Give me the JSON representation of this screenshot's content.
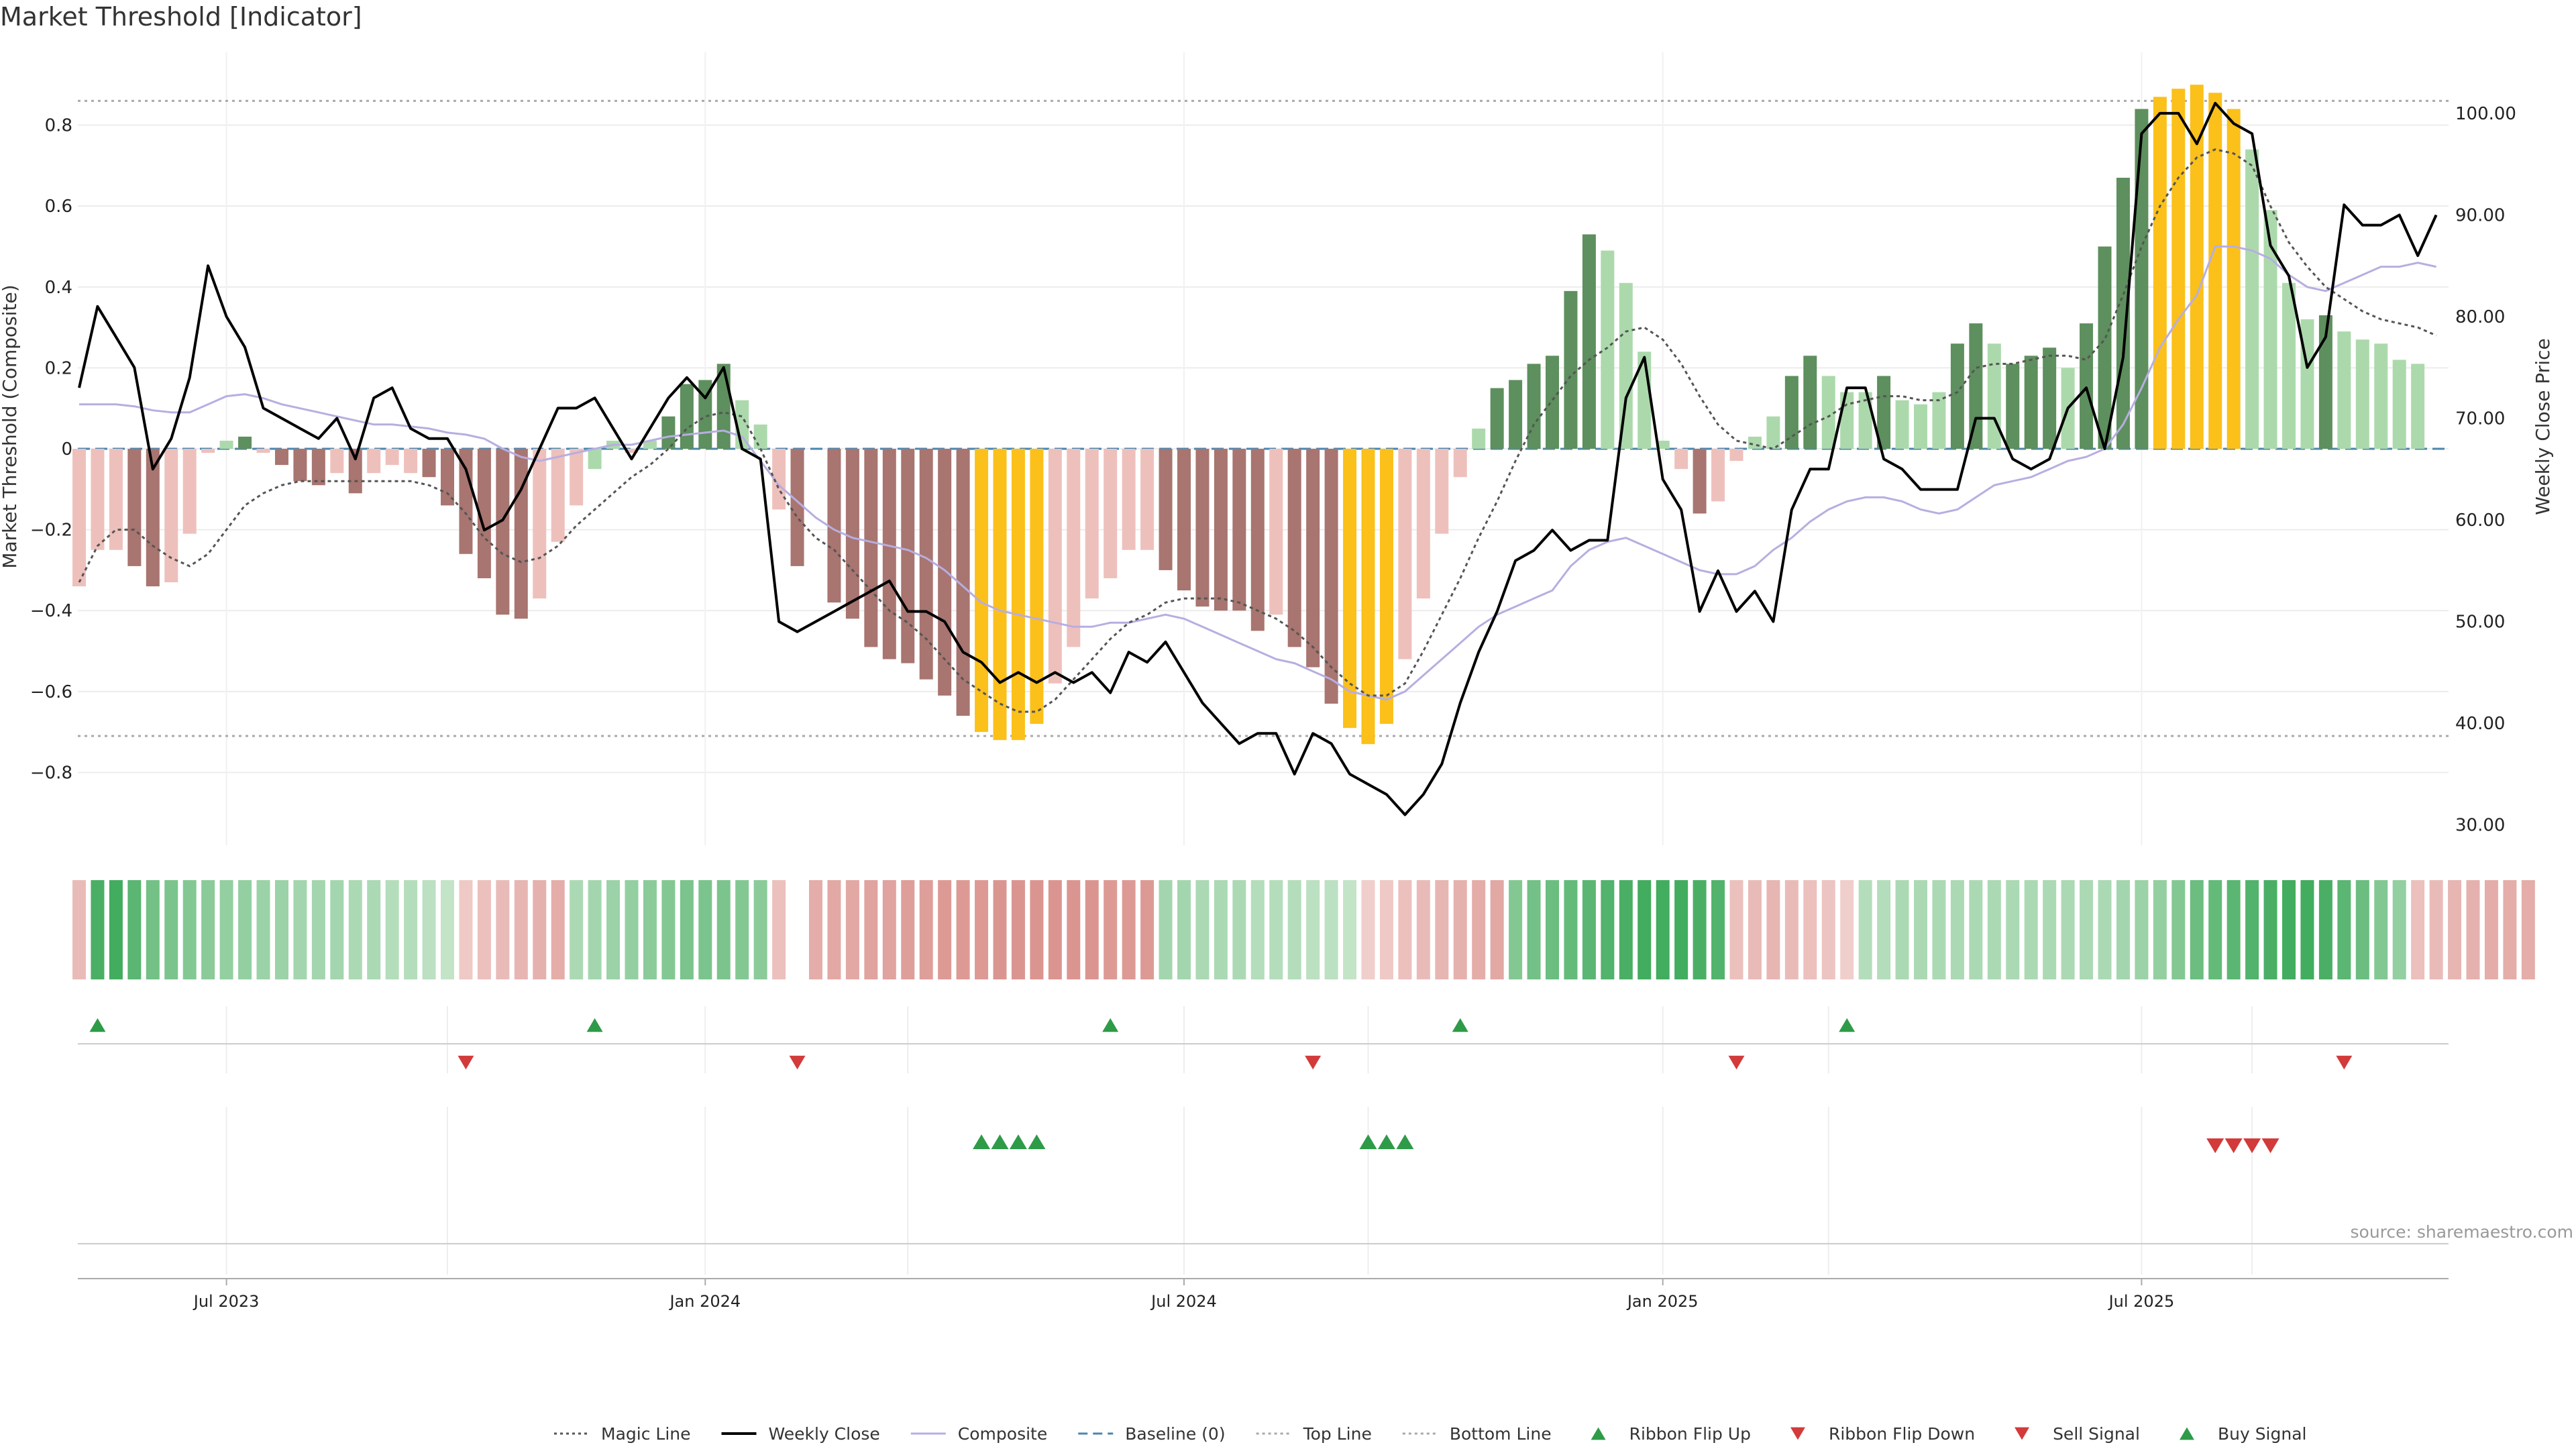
{
  "chart_data": {
    "type": "bar",
    "title": "Market Threshold [Indicator]",
    "ylabel_left": "Market Threshold (Composite)",
    "ylabel_right": "Weekly Close Price",
    "ylim_left": [
      -0.98,
      0.98
    ],
    "ylim_right": [
      28,
      106
    ],
    "yticks_left": [
      -0.8,
      -0.6,
      -0.4,
      -0.2,
      0,
      0.2,
      0.4,
      0.6,
      0.8
    ],
    "yticks_left_labels": [
      "−0.8",
      "−0.6",
      "−0.4",
      "−0.2",
      "0",
      "0.2",
      "0.4",
      "0.6",
      "0.8"
    ],
    "yticks_right": [
      30,
      40,
      50,
      60,
      70,
      80,
      90,
      100
    ],
    "yticks_right_labels": [
      "30.00",
      "40.00",
      "50.00",
      "60.00",
      "70.00",
      "80.00",
      "90.00",
      "100.00"
    ],
    "xticks": [
      "Jul 2023",
      "Jan 2024",
      "Jul 2024",
      "Jan 2025",
      "Jul 2025"
    ],
    "xtick_index": [
      8,
      34,
      60,
      86,
      112
    ],
    "top_line": 0.86,
    "bottom_line": -0.71,
    "grid": true,
    "legend_position": "bottom",
    "source": "source: sharemaestro.com",
    "colors": {
      "strong_pos": "#5e8f5e",
      "weak_pos": "#acd9ac",
      "strong_neg": "#a87570",
      "weak_neg": "#eec0bc",
      "extreme": "#fbc01a",
      "close": "#000000",
      "composite": "#b7aee0",
      "magic": "#555555",
      "baseline": "#4a86b0",
      "up": "#2e9b48",
      "down": "#d33a3a"
    },
    "bars": [
      -0.34,
      -0.25,
      -0.25,
      -0.29,
      -0.34,
      -0.33,
      -0.21,
      -0.01,
      0.02,
      0.03,
      -0.01,
      -0.04,
      -0.08,
      -0.09,
      -0.06,
      -0.11,
      -0.06,
      -0.04,
      -0.06,
      -0.07,
      -0.14,
      -0.26,
      -0.32,
      -0.41,
      -0.42,
      -0.37,
      -0.23,
      -0.14,
      -0.05,
      0.02,
      -0.01,
      0.02,
      0.08,
      0.16,
      0.17,
      0.21,
      0.12,
      0.06,
      -0.15,
      -0.29,
      0,
      -0.38,
      -0.42,
      -0.49,
      -0.52,
      -0.53,
      -0.57,
      -0.61,
      -0.66,
      -0.7,
      -0.72,
      -0.72,
      -0.68,
      -0.58,
      -0.49,
      -0.37,
      -0.32,
      -0.25,
      -0.25,
      -0.3,
      -0.35,
      -0.39,
      -0.4,
      -0.4,
      -0.45,
      -0.41,
      -0.49,
      -0.54,
      -0.63,
      -0.69,
      -0.73,
      -0.68,
      -0.52,
      -0.37,
      -0.21,
      -0.07,
      0.05,
      0.15,
      0.17,
      0.21,
      0.23,
      0.39,
      0.53,
      0.49,
      0.41,
      0.24,
      0.02,
      -0.05,
      -0.16,
      -0.13,
      -0.03,
      0.03,
      0.08,
      0.18,
      0.23,
      0.18,
      0.14,
      0.14,
      0.18,
      0.12,
      0.11,
      0.14,
      0.26,
      0.31,
      0.26,
      0.21,
      0.23,
      0.25,
      0.2,
      0.31,
      0.5,
      0.67,
      0.84,
      0.87,
      0.89,
      0.9,
      0.88,
      0.84,
      0.74,
      0.59,
      0.41,
      0.32,
      0.33,
      0.29,
      0.27,
      0.26,
      0.22,
      0.21
    ],
    "categories_bar_class": "strong_pos|weak_pos|strong_neg|weak_neg|extreme",
    "bar_class": [
      "weak_neg",
      "weak_neg",
      "weak_neg",
      "strong_neg",
      "strong_neg",
      "weak_neg",
      "weak_neg",
      "weak_neg",
      "weak_pos",
      "strong_pos",
      "weak_neg",
      "strong_neg",
      "strong_neg",
      "strong_neg",
      "weak_neg",
      "strong_neg",
      "weak_neg",
      "weak_neg",
      "weak_neg",
      "strong_neg",
      "strong_neg",
      "strong_neg",
      "strong_neg",
      "strong_neg",
      "strong_neg",
      "weak_neg",
      "weak_neg",
      "weak_neg",
      "weak_pos",
      "weak_pos",
      "weak_neg",
      "weak_pos",
      "strong_pos",
      "strong_pos",
      "strong_pos",
      "strong_pos",
      "weak_pos",
      "weak_pos",
      "weak_neg",
      "strong_neg",
      "weak_neg",
      "strong_neg",
      "strong_neg",
      "strong_neg",
      "strong_neg",
      "strong_neg",
      "strong_neg",
      "strong_neg",
      "strong_neg",
      "extreme",
      "extreme",
      "extreme",
      "extreme",
      "weak_neg",
      "weak_neg",
      "weak_neg",
      "weak_neg",
      "weak_neg",
      "weak_neg",
      "strong_neg",
      "strong_neg",
      "strong_neg",
      "strong_neg",
      "strong_neg",
      "strong_neg",
      "weak_neg",
      "strong_neg",
      "strong_neg",
      "strong_neg",
      "extreme",
      "extreme",
      "extreme",
      "weak_neg",
      "weak_neg",
      "weak_neg",
      "weak_neg",
      "weak_pos",
      "strong_pos",
      "strong_pos",
      "strong_pos",
      "strong_pos",
      "strong_pos",
      "strong_pos",
      "weak_pos",
      "weak_pos",
      "weak_pos",
      "weak_pos",
      "weak_neg",
      "strong_neg",
      "weak_neg",
      "weak_neg",
      "weak_pos",
      "weak_pos",
      "strong_pos",
      "strong_pos",
      "weak_pos",
      "weak_pos",
      "weak_pos",
      "strong_pos",
      "weak_pos",
      "weak_pos",
      "weak_pos",
      "strong_pos",
      "strong_pos",
      "weak_pos",
      "strong_pos",
      "strong_pos",
      "strong_pos",
      "weak_pos",
      "strong_pos",
      "strong_pos",
      "strong_pos",
      "strong_pos",
      "extreme",
      "extreme",
      "extreme",
      "extreme",
      "extreme",
      "weak_pos",
      "weak_pos",
      "weak_pos",
      "weak_pos",
      "strong_pos",
      "weak_pos",
      "weak_pos",
      "weak_pos",
      "weak_pos",
      "weak_pos",
      "weak_pos"
    ],
    "weekly_close": [
      73,
      81,
      78,
      75,
      65,
      68,
      74,
      85,
      80,
      77,
      71,
      70,
      69,
      68,
      70,
      66,
      72,
      73,
      69,
      68,
      68,
      65,
      59,
      60,
      63,
      67,
      71,
      71,
      72,
      69,
      66,
      69,
      72,
      74,
      72,
      75,
      67,
      66,
      50,
      49,
      50,
      51,
      52,
      53,
      54,
      51,
      51,
      50,
      47,
      46,
      44,
      45,
      44,
      45,
      44,
      45,
      43,
      47,
      46,
      48,
      45,
      42,
      40,
      38,
      39,
      39,
      35,
      39,
      38,
      35,
      34,
      33,
      31,
      33,
      36,
      42,
      47,
      51,
      56,
      57,
      59,
      57,
      58,
      58,
      72,
      76,
      64,
      61,
      51,
      55,
      51,
      53,
      50,
      61,
      65,
      65,
      73,
      73,
      66,
      65,
      63,
      63,
      63,
      70,
      70,
      66,
      65,
      66,
      71,
      73,
      67,
      76,
      98,
      100,
      100,
      97,
      101,
      99,
      98,
      87,
      84,
      75,
      78,
      91,
      89,
      89,
      90,
      86,
      90
    ],
    "composite": [
      0.11,
      0.11,
      0.11,
      0.105,
      0.095,
      0.09,
      0.09,
      0.11,
      0.13,
      0.135,
      0.125,
      0.11,
      0.1,
      0.09,
      0.08,
      0.07,
      0.06,
      0.06,
      0.055,
      0.05,
      0.04,
      0.035,
      0.025,
      0.0,
      -0.02,
      -0.03,
      -0.02,
      -0.01,
      0.0,
      0.01,
      0.01,
      0.02,
      0.03,
      0.035,
      0.04,
      0.045,
      0.03,
      -0.03,
      -0.09,
      -0.13,
      -0.17,
      -0.2,
      -0.22,
      -0.23,
      -0.24,
      -0.25,
      -0.27,
      -0.3,
      -0.34,
      -0.38,
      -0.4,
      -0.41,
      -0.42,
      -0.43,
      -0.44,
      -0.44,
      -0.43,
      -0.43,
      -0.42,
      -0.41,
      -0.42,
      -0.44,
      -0.46,
      -0.48,
      -0.5,
      -0.52,
      -0.53,
      -0.55,
      -0.57,
      -0.6,
      -0.61,
      -0.62,
      -0.6,
      -0.56,
      -0.52,
      -0.48,
      -0.44,
      -0.41,
      -0.39,
      -0.37,
      -0.35,
      -0.29,
      -0.25,
      -0.23,
      -0.22,
      -0.24,
      -0.26,
      -0.28,
      -0.3,
      -0.31,
      -0.31,
      -0.29,
      -0.25,
      -0.22,
      -0.18,
      -0.15,
      -0.13,
      -0.12,
      -0.12,
      -0.13,
      -0.15,
      -0.16,
      -0.15,
      -0.12,
      -0.09,
      -0.08,
      -0.07,
      -0.05,
      -0.03,
      -0.02,
      0.0,
      0.06,
      0.15,
      0.25,
      0.32,
      0.38,
      0.5,
      0.5,
      0.49,
      0.47,
      0.43,
      0.4,
      0.39,
      0.41,
      0.43,
      0.45,
      0.45,
      0.46,
      0.45
    ],
    "magic": [
      -0.33,
      -0.24,
      -0.2,
      -0.2,
      -0.24,
      -0.27,
      -0.29,
      -0.26,
      -0.2,
      -0.14,
      -0.11,
      -0.09,
      -0.08,
      -0.08,
      -0.08,
      -0.08,
      -0.08,
      -0.08,
      -0.08,
      -0.09,
      -0.11,
      -0.16,
      -0.22,
      -0.26,
      -0.28,
      -0.27,
      -0.24,
      -0.19,
      -0.15,
      -0.11,
      -0.07,
      -0.04,
      0.0,
      0.05,
      0.08,
      0.09,
      0.08,
      0.0,
      -0.1,
      -0.17,
      -0.22,
      -0.25,
      -0.3,
      -0.35,
      -0.4,
      -0.43,
      -0.47,
      -0.52,
      -0.57,
      -0.6,
      -0.63,
      -0.65,
      -0.65,
      -0.62,
      -0.57,
      -0.52,
      -0.47,
      -0.43,
      -0.41,
      -0.38,
      -0.37,
      -0.37,
      -0.37,
      -0.38,
      -0.4,
      -0.42,
      -0.45,
      -0.49,
      -0.54,
      -0.58,
      -0.61,
      -0.61,
      -0.58,
      -0.5,
      -0.41,
      -0.32,
      -0.22,
      -0.13,
      -0.03,
      0.06,
      0.12,
      0.18,
      0.22,
      0.25,
      0.29,
      0.3,
      0.27,
      0.21,
      0.13,
      0.06,
      0.02,
      0.01,
      0.0,
      0.03,
      0.06,
      0.08,
      0.11,
      0.12,
      0.13,
      0.13,
      0.12,
      0.12,
      0.14,
      0.2,
      0.21,
      0.21,
      0.22,
      0.23,
      0.23,
      0.22,
      0.27,
      0.38,
      0.5,
      0.6,
      0.67,
      0.72,
      0.74,
      0.73,
      0.7,
      0.6,
      0.51,
      0.45,
      0.4,
      0.37,
      0.34,
      0.32,
      0.31,
      0.3,
      0.28
    ],
    "ribbon": [
      -0.35,
      0.9,
      0.95,
      0.8,
      0.65,
      0.6,
      0.55,
      0.5,
      0.45,
      0.45,
      0.4,
      0.4,
      0.35,
      0.35,
      0.35,
      0.3,
      0.3,
      0.25,
      0.25,
      0.2,
      0.15,
      -0.2,
      -0.3,
      -0.35,
      -0.4,
      -0.45,
      -0.5,
      0.3,
      0.35,
      0.4,
      0.45,
      0.5,
      0.55,
      0.6,
      0.6,
      0.6,
      0.55,
      0.5,
      -0.3,
      0,
      -0.5,
      -0.55,
      -0.55,
      -0.6,
      -0.6,
      -0.65,
      -0.65,
      -0.7,
      -0.7,
      -0.7,
      -0.75,
      -0.75,
      -0.75,
      -0.75,
      -0.75,
      -0.75,
      -0.7,
      -0.7,
      -0.7,
      0.35,
      0.35,
      0.3,
      0.3,
      0.3,
      0.25,
      0.25,
      0.25,
      0.2,
      0.2,
      0.15,
      -0.15,
      -0.2,
      -0.3,
      -0.35,
      -0.4,
      -0.45,
      -0.5,
      -0.55,
      0.55,
      0.65,
      0.7,
      0.75,
      0.8,
      0.85,
      0.9,
      0.95,
      0.95,
      0.95,
      0.9,
      0.85,
      -0.3,
      -0.35,
      -0.4,
      -0.35,
      -0.3,
      -0.25,
      -0.15,
      0.25,
      0.25,
      0.3,
      0.3,
      0.3,
      0.3,
      0.3,
      0.3,
      0.3,
      0.3,
      0.3,
      0.3,
      0.3,
      0.3,
      0.35,
      0.4,
      0.45,
      0.55,
      0.7,
      0.75,
      0.8,
      0.85,
      0.9,
      0.95,
      0.95,
      0.9,
      0.8,
      0.7,
      0.55,
      0.45,
      -0.3,
      -0.35,
      -0.4,
      -0.45,
      -0.5,
      -0.5,
      -0.5
    ],
    "ribbon_flip_up_idx": [
      1,
      28,
      56,
      75,
      96
    ],
    "ribbon_flip_down_idx": [
      21,
      39,
      67,
      90,
      123
    ],
    "buy_signal_idx": [
      49,
      50,
      51,
      52,
      70,
      71,
      72
    ],
    "sell_signal_idx": [
      116,
      117,
      118,
      119
    ],
    "legend": [
      {
        "label": "Magic Line",
        "kind": "dotted",
        "color": "#555555"
      },
      {
        "label": "Weekly Close",
        "kind": "solid",
        "color": "#000000"
      },
      {
        "label": "Composite",
        "kind": "solid",
        "color": "#b7aee0"
      },
      {
        "label": "Baseline (0)",
        "kind": "dashed",
        "color": "#4a86b0"
      },
      {
        "label": "Top Line",
        "kind": "dotted",
        "color": "#aaaaaa"
      },
      {
        "label": "Bottom Line",
        "kind": "dotted",
        "color": "#aaaaaa"
      },
      {
        "label": "Ribbon Flip Up",
        "kind": "tri-up",
        "color": "#2e9b48"
      },
      {
        "label": "Ribbon Flip Down",
        "kind": "tri-down",
        "color": "#d33a3a"
      },
      {
        "label": "Sell Signal",
        "kind": "tri-down",
        "color": "#d33a3a"
      },
      {
        "label": "Buy Signal",
        "kind": "tri-up",
        "color": "#2e9b48"
      }
    ]
  }
}
